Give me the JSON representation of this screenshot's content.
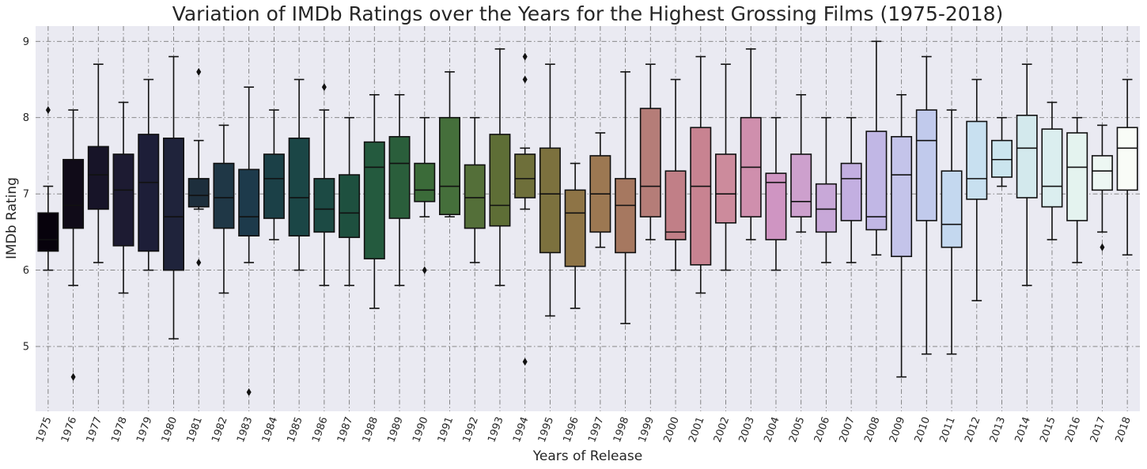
{
  "chart_data": {
    "type": "box",
    "title": "Variation of IMDb Ratings over the Years for the Highest Grossing Films (1975-2018)",
    "xlabel": "Years of Release",
    "ylabel": "IMDb Rating",
    "ylim": [
      4.15,
      9.2
    ],
    "yticks": [
      "5",
      "6",
      "7",
      "8",
      "9"
    ],
    "grid": true,
    "categories": [
      "1975",
      "1976",
      "1977",
      "1978",
      "1979",
      "1980",
      "1981",
      "1982",
      "1983",
      "1984",
      "1985",
      "1986",
      "1987",
      "1988",
      "1989",
      "1990",
      "1991",
      "1992",
      "1993",
      "1994",
      "1995",
      "1996",
      "1997",
      "1998",
      "1999",
      "2000",
      "2001",
      "2002",
      "2003",
      "2004",
      "2005",
      "2006",
      "2007",
      "2008",
      "2009",
      "2010",
      "2011",
      "2012",
      "2013",
      "2014",
      "2015",
      "2016",
      "2017",
      "2018"
    ],
    "boxes": [
      {
        "whislo": 6.0,
        "q1": 6.25,
        "med": 6.4,
        "q3": 6.75,
        "whishi": 7.1,
        "fliers": [
          8.1
        ]
      },
      {
        "whislo": 5.8,
        "q1": 6.55,
        "med": 6.85,
        "q3": 7.45,
        "whishi": 8.1,
        "fliers": [
          4.6
        ]
      },
      {
        "whislo": 6.1,
        "q1": 6.8,
        "med": 7.25,
        "q3": 7.62,
        "whishi": 8.7,
        "fliers": []
      },
      {
        "whislo": 5.7,
        "q1": 6.32,
        "med": 7.05,
        "q3": 7.52,
        "whishi": 8.2,
        "fliers": []
      },
      {
        "whislo": 6.0,
        "q1": 6.25,
        "med": 7.15,
        "q3": 7.78,
        "whishi": 8.5,
        "fliers": []
      },
      {
        "whislo": 5.1,
        "q1": 6.0,
        "med": 6.7,
        "q3": 7.73,
        "whishi": 8.8,
        "fliers": []
      },
      {
        "whislo": 6.8,
        "q1": 6.83,
        "med": 6.98,
        "q3": 7.2,
        "whishi": 7.7,
        "fliers": [
          6.1,
          8.6
        ]
      },
      {
        "whislo": 5.7,
        "q1": 6.55,
        "med": 6.95,
        "q3": 7.4,
        "whishi": 7.9,
        "fliers": []
      },
      {
        "whislo": 6.1,
        "q1": 6.45,
        "med": 6.7,
        "q3": 7.32,
        "whishi": 8.4,
        "fliers": [
          4.4
        ]
      },
      {
        "whislo": 6.4,
        "q1": 6.68,
        "med": 7.2,
        "q3": 7.52,
        "whishi": 8.1,
        "fliers": []
      },
      {
        "whislo": 6.0,
        "q1": 6.45,
        "med": 6.95,
        "q3": 7.73,
        "whishi": 8.5,
        "fliers": []
      },
      {
        "whislo": 5.8,
        "q1": 6.5,
        "med": 6.8,
        "q3": 7.2,
        "whishi": 8.1,
        "fliers": [
          8.4
        ]
      },
      {
        "whislo": 5.8,
        "q1": 6.43,
        "med": 6.75,
        "q3": 7.25,
        "whishi": 8.0,
        "fliers": []
      },
      {
        "whislo": 5.5,
        "q1": 6.15,
        "med": 7.35,
        "q3": 7.68,
        "whishi": 8.3,
        "fliers": []
      },
      {
        "whislo": 5.8,
        "q1": 6.68,
        "med": 7.4,
        "q3": 7.75,
        "whishi": 8.3,
        "fliers": []
      },
      {
        "whislo": 6.7,
        "q1": 6.9,
        "med": 7.05,
        "q3": 7.4,
        "whishi": 8.0,
        "fliers": [
          6.0
        ]
      },
      {
        "whislo": 6.7,
        "q1": 6.73,
        "med": 7.1,
        "q3": 8.0,
        "whishi": 8.6,
        "fliers": []
      },
      {
        "whislo": 6.1,
        "q1": 6.55,
        "med": 6.95,
        "q3": 7.38,
        "whishi": 8.0,
        "fliers": []
      },
      {
        "whislo": 5.8,
        "q1": 6.58,
        "med": 6.85,
        "q3": 7.78,
        "whishi": 8.9,
        "fliers": []
      },
      {
        "whislo": 6.8,
        "q1": 6.95,
        "med": 7.2,
        "q3": 7.52,
        "whishi": 7.6,
        "fliers": [
          4.8,
          8.5,
          8.8
        ]
      },
      {
        "whislo": 5.4,
        "q1": 6.23,
        "med": 7.0,
        "q3": 7.6,
        "whishi": 8.7,
        "fliers": []
      },
      {
        "whislo": 5.5,
        "q1": 6.05,
        "med": 6.75,
        "q3": 7.05,
        "whishi": 7.4,
        "fliers": []
      },
      {
        "whislo": 6.3,
        "q1": 6.5,
        "med": 7.0,
        "q3": 7.5,
        "whishi": 7.8,
        "fliers": []
      },
      {
        "whislo": 5.3,
        "q1": 6.23,
        "med": 6.85,
        "q3": 7.2,
        "whishi": 8.6,
        "fliers": []
      },
      {
        "whislo": 6.4,
        "q1": 6.7,
        "med": 7.1,
        "q3": 8.12,
        "whishi": 8.7,
        "fliers": []
      },
      {
        "whislo": 6.0,
        "q1": 6.4,
        "med": 6.5,
        "q3": 7.3,
        "whishi": 8.5,
        "fliers": []
      },
      {
        "whislo": 5.7,
        "q1": 6.07,
        "med": 7.1,
        "q3": 7.87,
        "whishi": 8.8,
        "fliers": []
      },
      {
        "whislo": 6.0,
        "q1": 6.62,
        "med": 7.0,
        "q3": 7.52,
        "whishi": 8.7,
        "fliers": []
      },
      {
        "whislo": 6.4,
        "q1": 6.7,
        "med": 7.35,
        "q3": 8.0,
        "whishi": 8.9,
        "fliers": []
      },
      {
        "whislo": 6.0,
        "q1": 6.4,
        "med": 7.15,
        "q3": 7.27,
        "whishi": 8.0,
        "fliers": []
      },
      {
        "whislo": 6.5,
        "q1": 6.7,
        "med": 6.9,
        "q3": 7.52,
        "whishi": 8.3,
        "fliers": []
      },
      {
        "whislo": 6.1,
        "q1": 6.5,
        "med": 6.8,
        "q3": 7.13,
        "whishi": 8.0,
        "fliers": []
      },
      {
        "whislo": 6.1,
        "q1": 6.65,
        "med": 7.2,
        "q3": 7.4,
        "whishi": 8.0,
        "fliers": []
      },
      {
        "whislo": 6.2,
        "q1": 6.53,
        "med": 6.7,
        "q3": 7.82,
        "whishi": 9.0,
        "fliers": []
      },
      {
        "whislo": 4.6,
        "q1": 6.18,
        "med": 7.25,
        "q3": 7.75,
        "whishi": 8.3,
        "fliers": []
      },
      {
        "whislo": 4.9,
        "q1": 6.65,
        "med": 7.7,
        "q3": 8.1,
        "whishi": 8.8,
        "fliers": []
      },
      {
        "whislo": 4.9,
        "q1": 6.3,
        "med": 6.6,
        "q3": 7.3,
        "whishi": 8.1,
        "fliers": []
      },
      {
        "whislo": 5.6,
        "q1": 6.93,
        "med": 7.2,
        "q3": 7.95,
        "whishi": 8.5,
        "fliers": []
      },
      {
        "whislo": 7.1,
        "q1": 7.22,
        "med": 7.45,
        "q3": 7.7,
        "whishi": 8.0,
        "fliers": []
      },
      {
        "whislo": 5.8,
        "q1": 6.95,
        "med": 7.6,
        "q3": 8.03,
        "whishi": 8.7,
        "fliers": []
      },
      {
        "whislo": 6.4,
        "q1": 6.83,
        "med": 7.1,
        "q3": 7.85,
        "whishi": 8.2,
        "fliers": []
      },
      {
        "whislo": 6.1,
        "q1": 6.65,
        "med": 7.35,
        "q3": 7.8,
        "whishi": 8.0,
        "fliers": []
      },
      {
        "whislo": 6.5,
        "q1": 7.05,
        "med": 7.3,
        "q3": 7.5,
        "whishi": 7.9,
        "fliers": [
          6.3
        ]
      },
      {
        "whislo": 6.2,
        "q1": 7.05,
        "med": 7.6,
        "q3": 7.87,
        "whishi": 8.5,
        "fliers": []
      }
    ],
    "colors": [
      "#07020c",
      "#100b18",
      "#171428",
      "#1d1b32",
      "#1d1e38",
      "#1f233b",
      "#1d2e3c",
      "#1f3746",
      "#1d3a4b",
      "#1b4047",
      "#1b4646",
      "#1c4a44",
      "#1e503f",
      "#245a3e",
      "#2a5e3b",
      "#3b6b39",
      "#456f3b",
      "#546f39",
      "#5e6e36",
      "#6e6f3a",
      "#7c713e",
      "#8e7446",
      "#9c7852",
      "#a67860",
      "#b57d78",
      "#c17f87",
      "#c88391",
      "#cc8b9c",
      "#cf8fad",
      "#cf95c2",
      "#cda0cd",
      "#c8a8d8",
      "#c3afe1",
      "#c1b7e5",
      "#c4c4ea",
      "#c1caec",
      "#c4d8ef",
      "#c8e0f0",
      "#cbe5ee",
      "#d3e9ed",
      "#dbeeef",
      "#e4f3ef",
      "#edf7f3",
      "#f9fcf7"
    ]
  }
}
